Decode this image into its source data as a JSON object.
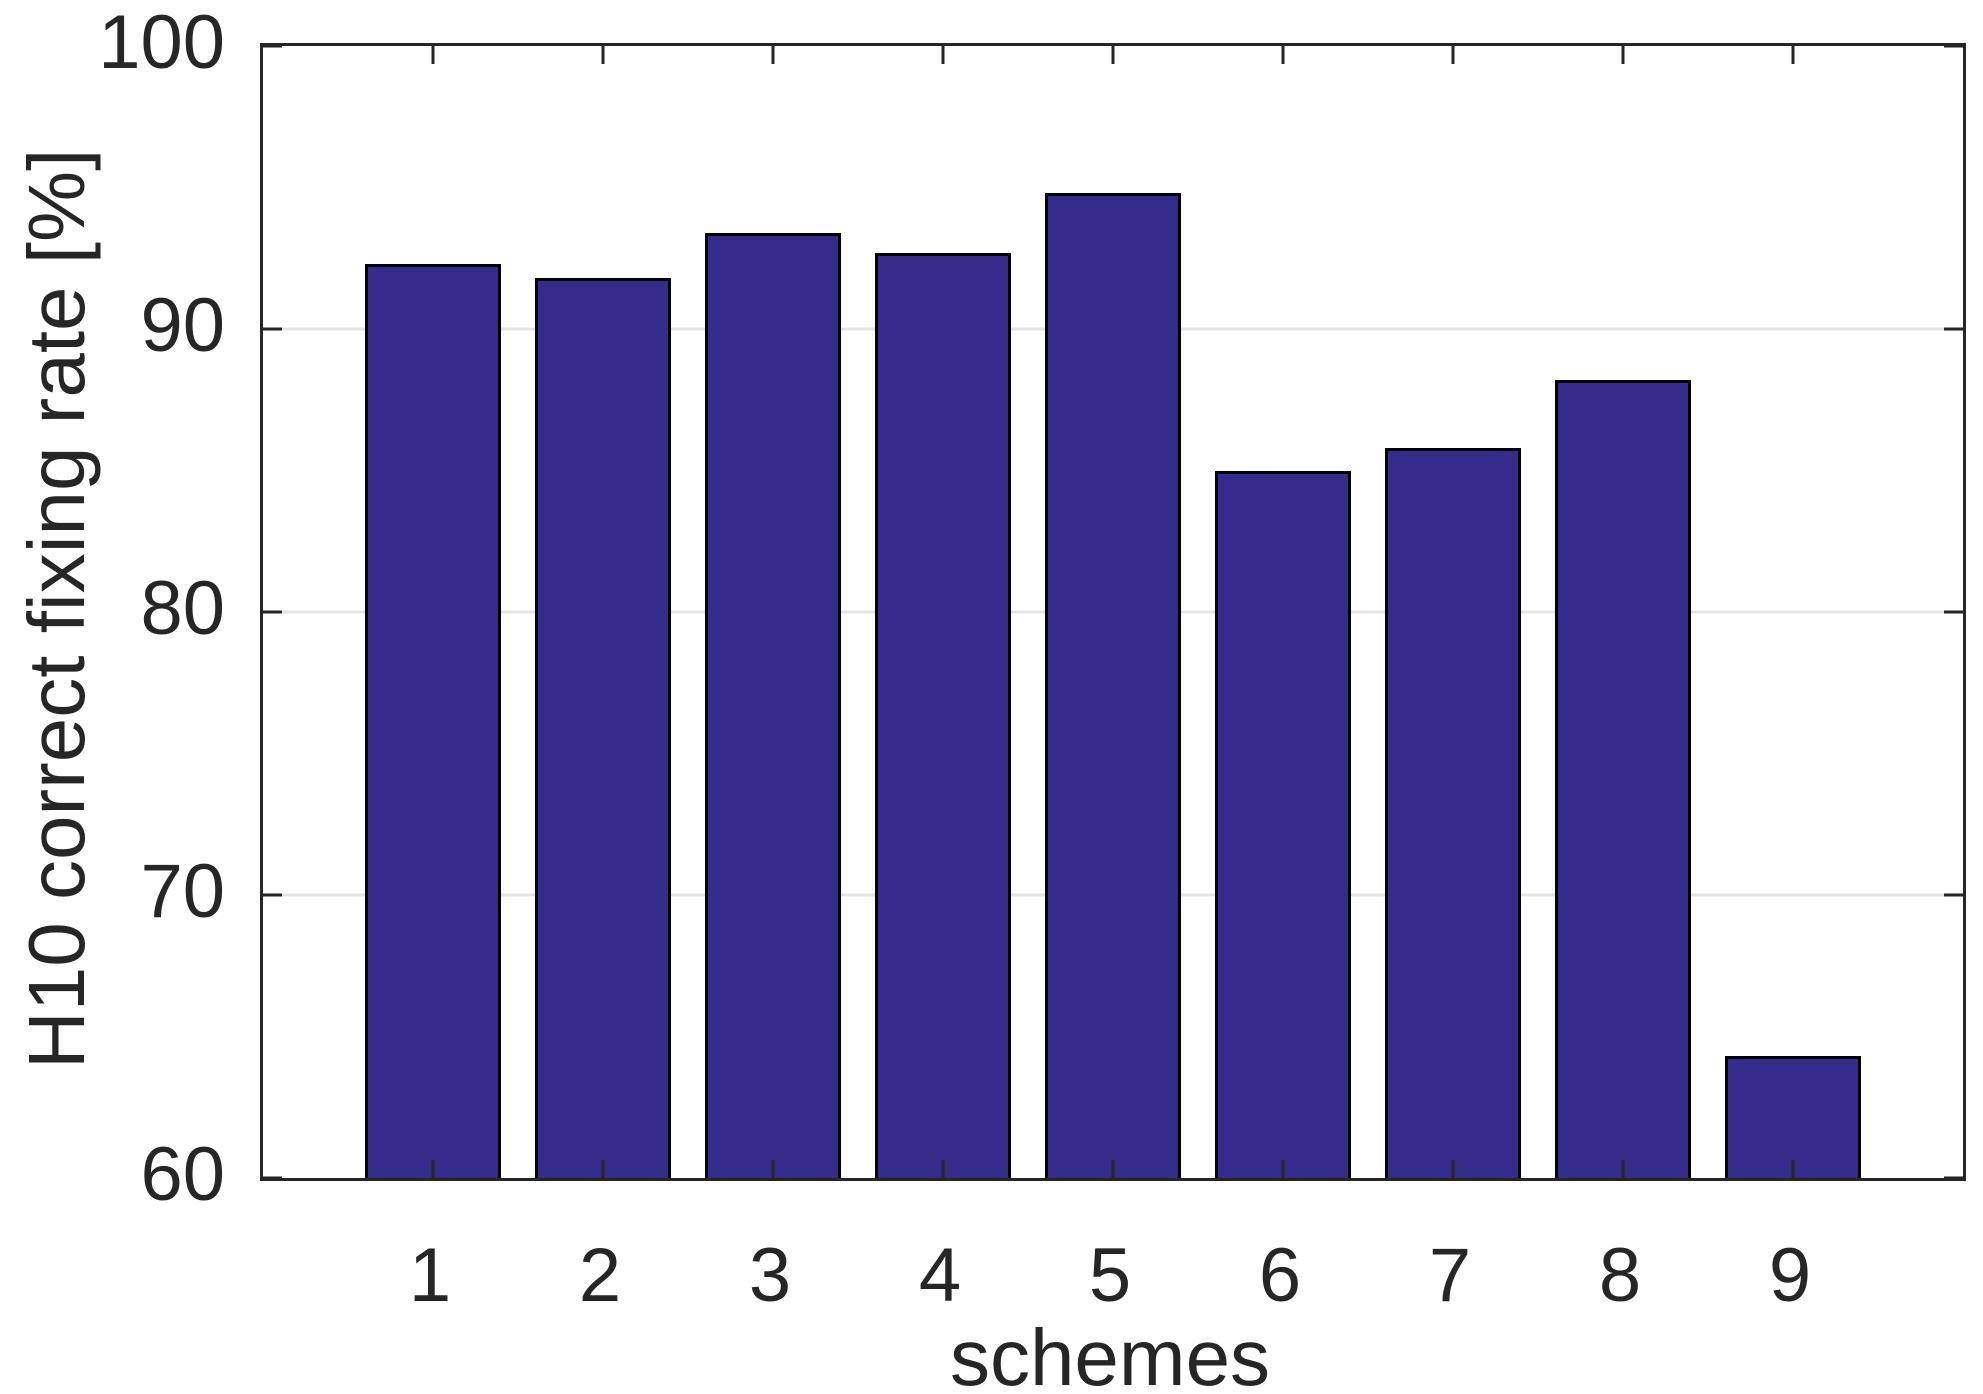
{
  "chart_data": {
    "type": "bar",
    "title": "",
    "xlabel": "schemes",
    "ylabel": "H10 correct fixing rate [%]",
    "categories": [
      "1",
      "2",
      "3",
      "4",
      "5",
      "6",
      "7",
      "8",
      "9"
    ],
    "values": [
      92.3,
      91.8,
      93.4,
      92.7,
      94.8,
      85.0,
      85.8,
      88.2,
      64.3
    ],
    "ylim": [
      60,
      100
    ],
    "yticks": [
      60,
      70,
      80,
      90,
      100
    ],
    "ytick_labels": [
      "60",
      "70",
      "80",
      "90",
      "100"
    ],
    "gridline_values": [
      70,
      80,
      90
    ],
    "xlim": [
      0,
      10
    ],
    "bar_width_ratio": 0.8,
    "grid": "horizontal-only",
    "legend": "none",
    "colors": {
      "bar_fill": "#342B8A",
      "bar_edge": "#000000",
      "axis": "#262626",
      "grid": "#E3E3E3",
      "text": "#262626",
      "background": "#FFFFFF"
    }
  }
}
